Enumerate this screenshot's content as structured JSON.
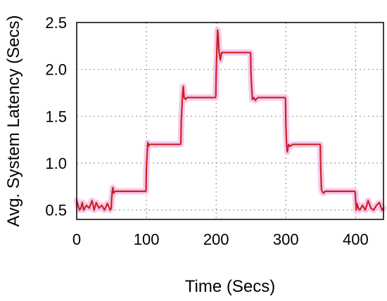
{
  "chart_data": {
    "type": "line",
    "xlabel": "Time (Secs)",
    "ylabel": "Avg. System Latency (Secs)",
    "xlim": [
      0,
      440
    ],
    "ylim": [
      0.4,
      2.5
    ],
    "xticks": [
      0,
      100,
      200,
      300,
      400
    ],
    "yticks": [
      0.5,
      1.0,
      1.5,
      2.0,
      2.5
    ],
    "x_tick_labels": [
      "0",
      "100",
      "200",
      "300",
      "400"
    ],
    "y_tick_labels": [
      "0.5",
      "1.0",
      "1.5",
      "2.0",
      "2.5"
    ],
    "grid": true,
    "series": [
      {
        "color": "#cc2222",
        "band_color": "#f4b8e6",
        "x": [
          0,
          2,
          4,
          6,
          8,
          10,
          14,
          18,
          22,
          25,
          28,
          32,
          36,
          40,
          44,
          48,
          49.5,
          50,
          51,
          52,
          53,
          55,
          60,
          70,
          80,
          90,
          99,
          99.5,
          100,
          101,
          102,
          103,
          104,
          105,
          110,
          120,
          130,
          140,
          149,
          149.5,
          150,
          151,
          152,
          153,
          154,
          156,
          158,
          160,
          170,
          180,
          190,
          199,
          199.5,
          200,
          201,
          202,
          203,
          204,
          206,
          208,
          210,
          220,
          230,
          240,
          249,
          249.5,
          250,
          251,
          252,
          254,
          256,
          260,
          270,
          280,
          290,
          299,
          299.5,
          300,
          301,
          302,
          304,
          306,
          310,
          320,
          330,
          340,
          349,
          349.5,
          350,
          351,
          352,
          354,
          356,
          360,
          370,
          380,
          390,
          399,
          399.5,
          400,
          401,
          402,
          404,
          406,
          410,
          414,
          418,
          422,
          426,
          430,
          434,
          438,
          440
        ],
        "y": [
          0.6,
          0.55,
          0.5,
          0.52,
          0.58,
          0.5,
          0.55,
          0.52,
          0.6,
          0.5,
          0.58,
          0.52,
          0.55,
          0.5,
          0.57,
          0.5,
          0.52,
          0.6,
          0.7,
          0.74,
          0.68,
          0.7,
          0.7,
          0.7,
          0.7,
          0.7,
          0.7,
          0.72,
          0.95,
          1.1,
          1.22,
          1.18,
          1.2,
          1.2,
          1.2,
          1.2,
          1.2,
          1.2,
          1.2,
          1.22,
          1.45,
          1.6,
          1.75,
          1.82,
          1.7,
          1.68,
          1.7,
          1.7,
          1.7,
          1.7,
          1.7,
          1.7,
          1.72,
          1.95,
          2.2,
          2.42,
          2.35,
          2.2,
          2.1,
          2.18,
          2.18,
          2.18,
          2.18,
          2.18,
          2.18,
          2.16,
          1.95,
          1.8,
          1.68,
          1.7,
          1.67,
          1.7,
          1.7,
          1.7,
          1.7,
          1.7,
          1.68,
          1.4,
          1.2,
          1.12,
          1.2,
          1.18,
          1.2,
          1.2,
          1.2,
          1.2,
          1.2,
          1.18,
          0.95,
          0.72,
          0.7,
          0.68,
          0.7,
          0.7,
          0.7,
          0.7,
          0.7,
          0.7,
          0.68,
          0.6,
          0.5,
          0.57,
          0.52,
          0.5,
          0.55,
          0.5,
          0.6,
          0.52,
          0.5,
          0.55,
          0.58,
          0.5,
          0.52
        ]
      }
    ]
  }
}
